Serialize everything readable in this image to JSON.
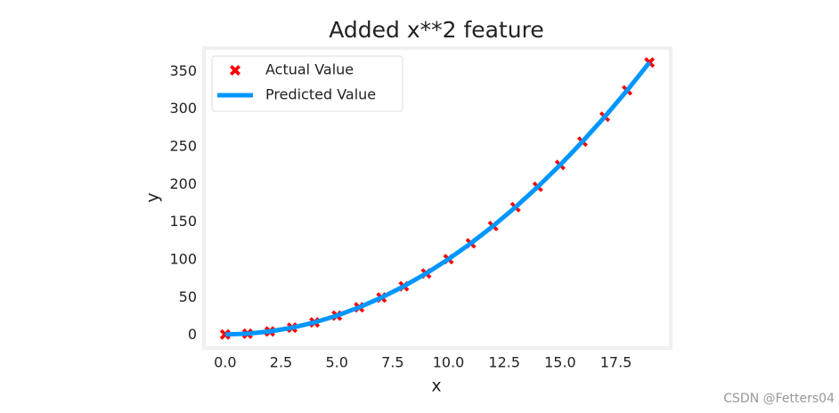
{
  "chart_data": {
    "type": "scatter",
    "title": "Added x**2 feature",
    "x_label": "x",
    "y_label": "y",
    "x": [
      0,
      1,
      2,
      3,
      4,
      5,
      6,
      7,
      8,
      9,
      10,
      11,
      12,
      13,
      14,
      15,
      16,
      17,
      18,
      19
    ],
    "series": [
      {
        "name": "Actual Value",
        "style": "marker",
        "color": "#ff0000",
        "values": [
          1,
          2,
          5,
          10,
          17,
          26,
          37,
          50,
          65,
          82,
          101,
          122,
          145,
          170,
          197,
          226,
          257,
          290,
          325,
          362
        ]
      },
      {
        "name": "Predicted Value",
        "style": "line",
        "color": "#0096ff",
        "values": [
          1,
          2,
          5,
          10,
          17,
          26,
          37,
          50,
          65,
          82,
          101,
          122,
          145,
          170,
          197,
          226,
          257,
          290,
          325,
          362
        ]
      }
    ],
    "xlim": [
      -0.95,
      19.95
    ],
    "xticks": [
      {
        "value": 0,
        "label": "0.0"
      },
      2.5,
      {
        "value": 5,
        "label": "5.0"
      },
      7.5,
      {
        "value": 10,
        "label": "10.0"
      },
      12.5,
      {
        "value": 15,
        "label": "15.0"
      },
      17.5
    ],
    "ylim": [
      -17,
      380
    ],
    "yticks": [
      0,
      50,
      100,
      150,
      200,
      250,
      300,
      350
    ],
    "legend": "upper left",
    "watermark": "CSDN @Fetters04"
  }
}
